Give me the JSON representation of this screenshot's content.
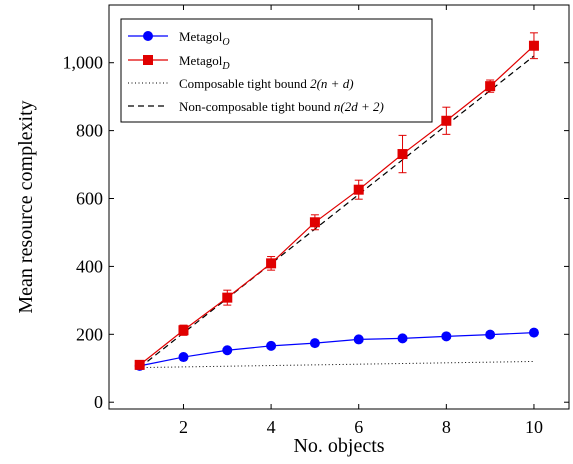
{
  "chart_data": {
    "type": "line",
    "xlabel": "No. objects",
    "ylabel": "Mean resource complexity",
    "xlim": [
      0.3,
      10.8
    ],
    "ylim": [
      -20,
      1170
    ],
    "xticks": [
      2,
      4,
      6,
      8,
      10
    ],
    "xtick_labels": [
      "2",
      "4",
      "6",
      "8",
      "10"
    ],
    "yticks": [
      0,
      200,
      400,
      600,
      800,
      1000
    ],
    "ytick_labels": [
      "0",
      "200",
      "400",
      "600",
      "800",
      "1,000"
    ],
    "grid": false,
    "legend_position": "top-left",
    "x": [
      1,
      2,
      3,
      4,
      5,
      6,
      7,
      8,
      9,
      10
    ],
    "series": [
      {
        "name": "Metagol",
        "name_sub": "O",
        "color": "#0000ff",
        "marker": "circle",
        "line": "solid",
        "values": [
          107,
          133,
          153,
          166,
          174,
          185,
          188,
          194,
          199,
          205
        ],
        "errors": [
          10,
          0,
          0,
          0,
          0,
          0,
          0,
          0,
          0,
          0
        ]
      },
      {
        "name": "Metagol",
        "name_sub": "D",
        "color": "#e00000",
        "marker": "square",
        "line": "solid",
        "values": [
          110,
          212,
          308,
          409,
          530,
          626,
          731,
          829,
          931,
          1050
        ],
        "errors": [
          10,
          15,
          22,
          20,
          22,
          28,
          55,
          40,
          18,
          38
        ]
      },
      {
        "name": "Composable tight bound 2(n + d)",
        "color": "#000000",
        "marker": "none",
        "line": "dotted",
        "values": [
          102,
          104,
          106,
          108,
          110,
          112,
          114,
          116,
          118,
          120
        ],
        "errors": []
      },
      {
        "name": "Non-composable tight bound n(2d + 2)",
        "color": "#000000",
        "marker": "none",
        "line": "dashed",
        "values": [
          102,
          204,
          306,
          408,
          510,
          612,
          714,
          816,
          918,
          1020
        ],
        "errors": []
      }
    ]
  },
  "legend": {
    "entries": [
      {
        "text": "Metagol",
        "sub": "O"
      },
      {
        "text": "Metagol",
        "sub": "D"
      },
      {
        "text": "Composable tight bound ",
        "math": "2(n + d)"
      },
      {
        "text": "Non-composable tight bound ",
        "math": "n(2d + 2)"
      }
    ]
  }
}
